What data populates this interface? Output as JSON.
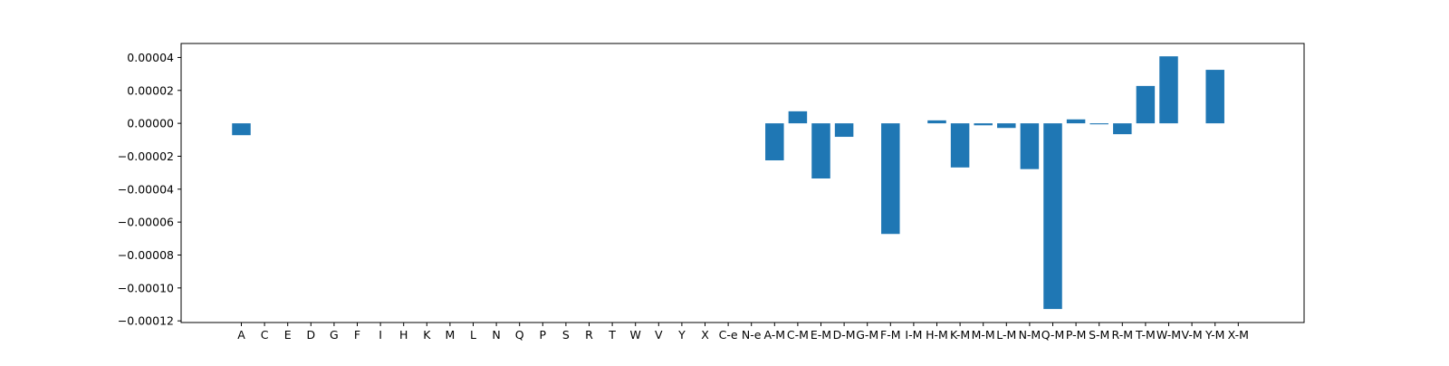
{
  "chart_data": {
    "type": "bar",
    "categories": [
      "A",
      "C",
      "E",
      "D",
      "G",
      "F",
      "I",
      "H",
      "K",
      "M",
      "L",
      "N",
      "Q",
      "P",
      "S",
      "R",
      "T",
      "W",
      "V",
      "Y",
      "X",
      "C-e",
      "N-e",
      "A-M",
      "C-M",
      "E-M",
      "D-M",
      "G-M",
      "F-M",
      "I-M",
      "H-M",
      "K-M",
      "M-M",
      "L-M",
      "N-M",
      "Q-M",
      "P-M",
      "S-M",
      "R-M",
      "T-M",
      "W-M",
      "V-M",
      "Y-M",
      "X-M"
    ],
    "values": [
      -7.2e-06,
      0,
      0,
      0,
      0,
      0,
      0,
      0,
      0,
      0,
      0,
      0,
      0,
      0,
      0,
      0,
      0,
      0,
      0,
      0,
      0,
      0,
      0,
      -2.25e-05,
      7.3e-06,
      -3.35e-05,
      -8.2e-06,
      0,
      -6.72e-05,
      0,
      1.8e-06,
      -2.68e-05,
      -1.2e-06,
      -2.8e-06,
      -2.78e-05,
      -0.0001128,
      2.4e-06,
      -6e-07,
      -6.6e-06,
      2.27e-05,
      4.07e-05,
      0,
      3.25e-05,
      0
    ],
    "ylim": [
      -0.000121,
      4.85e-05
    ],
    "yticks": [
      4e-05,
      2e-05,
      0.0,
      -2e-05,
      -4e-05,
      -6e-05,
      -8e-05,
      -0.0001,
      -0.00012
    ],
    "ytick_labels": [
      "0.00004",
      "0.00002",
      "0.00000",
      "−0.00002",
      "−0.00004",
      "−0.00006",
      "−0.00008",
      "−0.00010",
      "−0.00012"
    ],
    "title": "",
    "xlabel": "",
    "ylabel": "",
    "grid": false,
    "bar_color": "#1f77b4"
  }
}
